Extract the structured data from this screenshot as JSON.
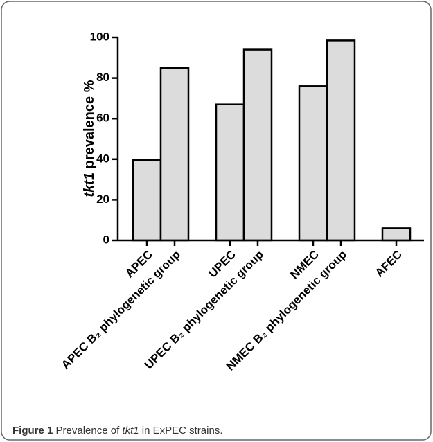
{
  "chart_data": {
    "type": "bar",
    "ylabel": [
      "tkt1",
      " prevalence %"
    ],
    "categories": [
      "APEC",
      "APEC B₂ phylogenetic group",
      "UPEC",
      "UPEC B₂ phylogenetic group",
      "NMEC",
      "NMEC B₂ phylogenetic group",
      "AFEC"
    ],
    "values": [
      39.5,
      85,
      67,
      94,
      76,
      98.5,
      6
    ],
    "color": "#dcdcdc",
    "ylim": [
      0,
      100
    ],
    "yticks": [
      0,
      20,
      40,
      60,
      80,
      100
    ]
  },
  "caption": {
    "label": "Figure 1",
    "text": [
      " Prevalence of ",
      "tkt1",
      " in ExPEC strains."
    ]
  }
}
